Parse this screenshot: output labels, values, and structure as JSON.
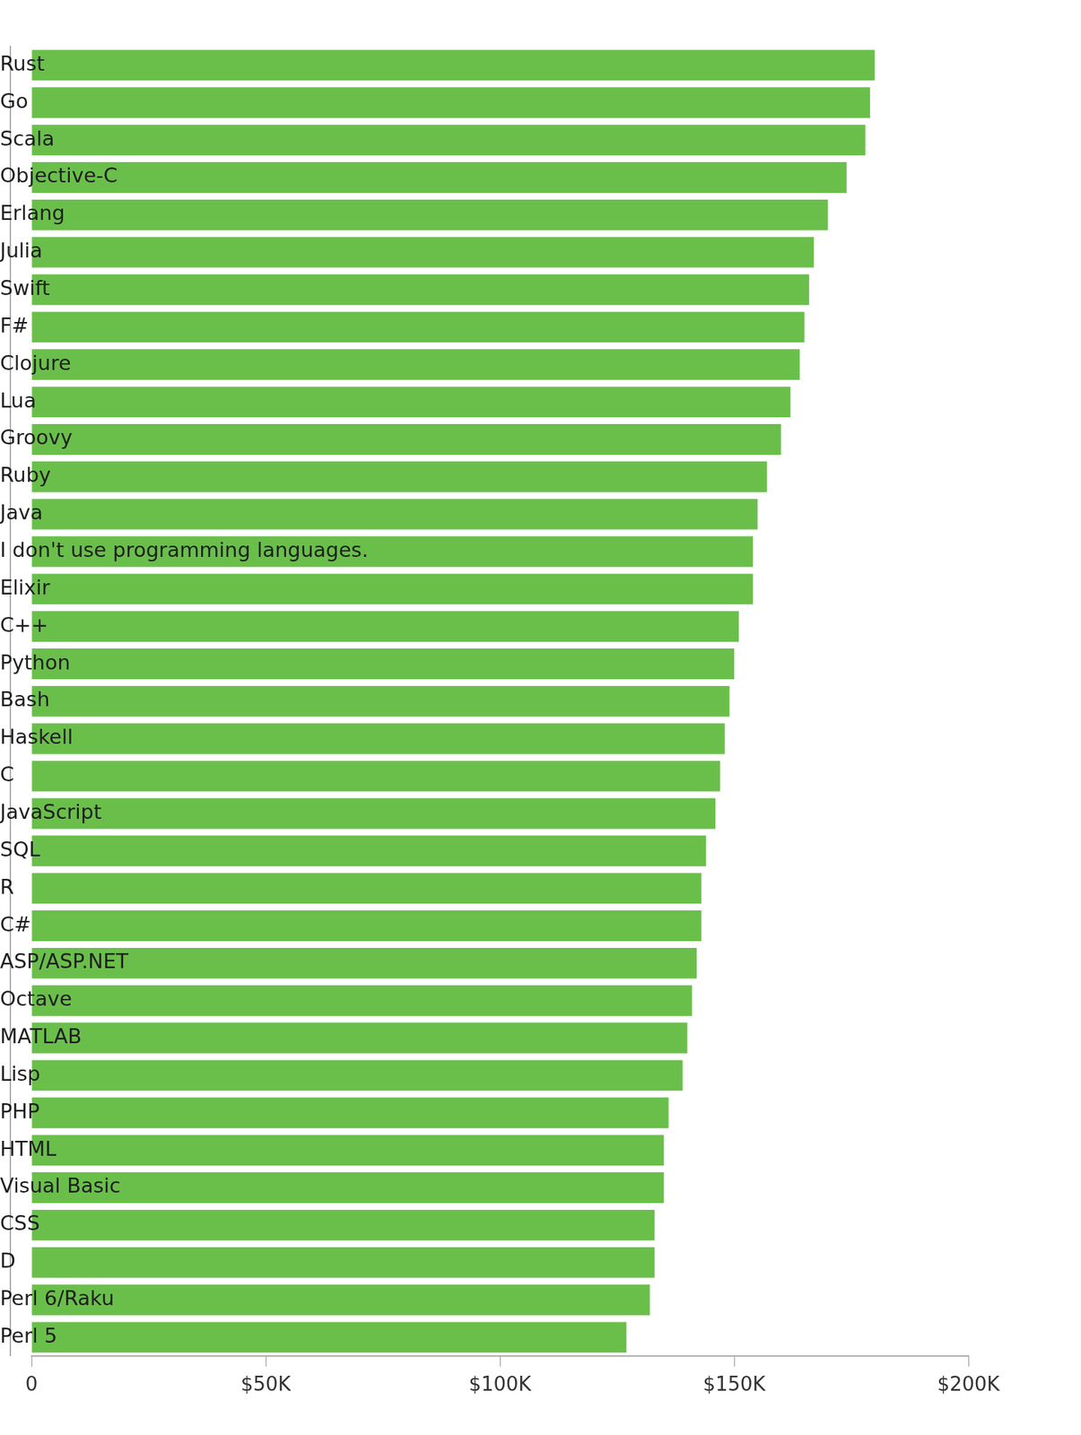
{
  "chart_data": {
    "type": "bar",
    "orientation": "horizontal",
    "categories": [
      "Rust",
      "Go",
      "Scala",
      "Objective-C",
      "Erlang",
      "Julia",
      "Swift",
      "F#",
      "Clojure",
      "Lua",
      "Groovy",
      "Ruby",
      "Java",
      "I don't use programming languages.",
      "Elixir",
      "C++",
      "Python",
      "Bash",
      "Haskell",
      "C",
      "JavaScript",
      "SQL",
      "R",
      "C#",
      "ASP/ASP.NET",
      "Octave",
      "MATLAB",
      "Lisp",
      "PHP",
      "HTML",
      "Visual Basic",
      "CSS",
      "D",
      "Perl 6/Raku",
      "Perl 5"
    ],
    "values": [
      180000,
      179000,
      178000,
      174000,
      170000,
      167000,
      166000,
      165000,
      164000,
      162000,
      160000,
      157000,
      155000,
      154000,
      154000,
      151000,
      150000,
      149000,
      148000,
      147000,
      146000,
      144000,
      143000,
      143000,
      142000,
      141000,
      140000,
      139000,
      136000,
      135000,
      135000,
      133000,
      133000,
      132000,
      127000
    ],
    "color": "#6abf4b",
    "xlim": [
      0,
      200000
    ],
    "xticks": [
      0,
      {
        "value": 50000,
        "label": "$50K"
      },
      {
        "value": 100000,
        "label": "$100K"
      },
      {
        "value": 150000,
        "label": "$150K"
      },
      {
        "value": 200000,
        "label": "$200K"
      }
    ],
    "grid": false
  }
}
